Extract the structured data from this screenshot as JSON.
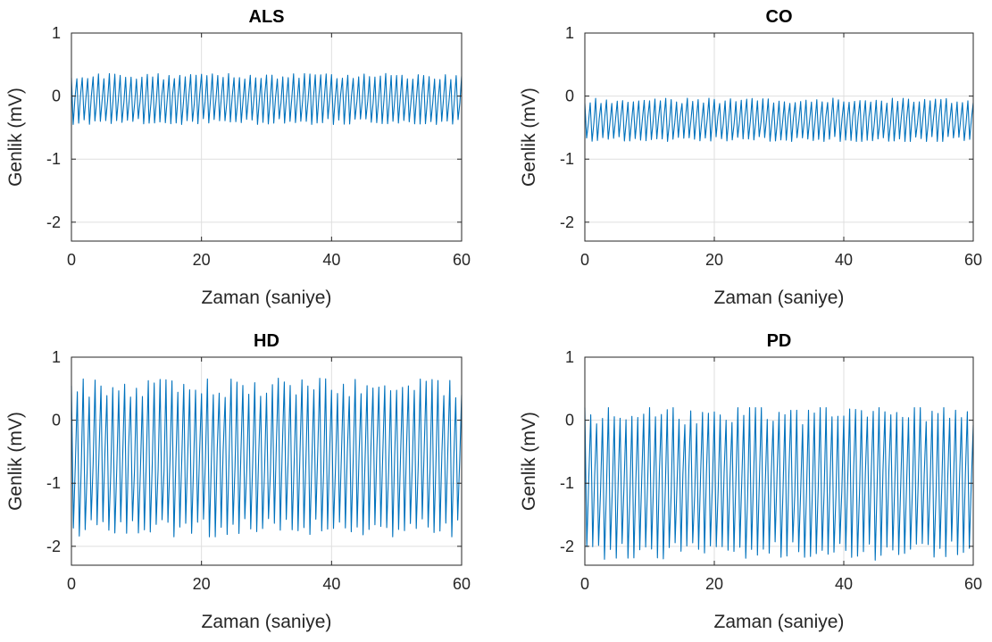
{
  "colors": {
    "signal": "#0072BD"
  },
  "chart_data": [
    {
      "type": "line",
      "title": "ALS",
      "xlabel": "Zaman (saniye)",
      "ylabel": "Genlik (mV)",
      "xlim": [
        0,
        60
      ],
      "ylim": [
        -2.3,
        1
      ],
      "xticks": [
        0,
        20,
        40,
        60
      ],
      "yticks": [
        1,
        0,
        -1,
        -2
      ],
      "grid": true,
      "signal": {
        "oscillation_freq_hz": 1.2,
        "center_mv": -0.05,
        "min_mv": -0.45,
        "max_mv": 0.37,
        "duration_s": 60
      }
    },
    {
      "type": "line",
      "title": "CO",
      "xlabel": "Zaman (saniye)",
      "ylabel": "Genlik (mV)",
      "xlim": [
        0,
        60
      ],
      "ylim": [
        -2.3,
        1
      ],
      "xticks": [
        0,
        20,
        40,
        60
      ],
      "yticks": [
        1,
        0,
        -1,
        -2
      ],
      "grid": true,
      "signal": {
        "oscillation_freq_hz": 1.2,
        "center_mv": -0.38,
        "min_mv": -0.72,
        "max_mv": -0.02,
        "duration_s": 60
      }
    },
    {
      "type": "line",
      "title": "HD",
      "xlabel": "Zaman (saniye)",
      "ylabel": "Genlik (mV)",
      "xlim": [
        0,
        60
      ],
      "ylim": [
        -2.3,
        1
      ],
      "xticks": [
        0,
        20,
        40,
        60
      ],
      "yticks": [
        1,
        0,
        -1,
        -2
      ],
      "grid": true,
      "signal": {
        "oscillation_freq_hz": 1.1,
        "center_mv": -0.6,
        "min_mv": -1.85,
        "max_mv": 0.7,
        "duration_s": 60
      }
    },
    {
      "type": "line",
      "title": "PD",
      "xlabel": "Zaman (saniye)",
      "ylabel": "Genlik (mV)",
      "xlim": [
        0,
        60
      ],
      "ylim": [
        -2.3,
        1
      ],
      "xticks": [
        0,
        20,
        40,
        60
      ],
      "yticks": [
        1,
        0,
        -1,
        -2
      ],
      "grid": true,
      "signal": {
        "oscillation_freq_hz": 1.1,
        "center_mv": -1.0,
        "min_mv": -2.25,
        "max_mv": 0.2,
        "duration_s": 60
      }
    }
  ]
}
